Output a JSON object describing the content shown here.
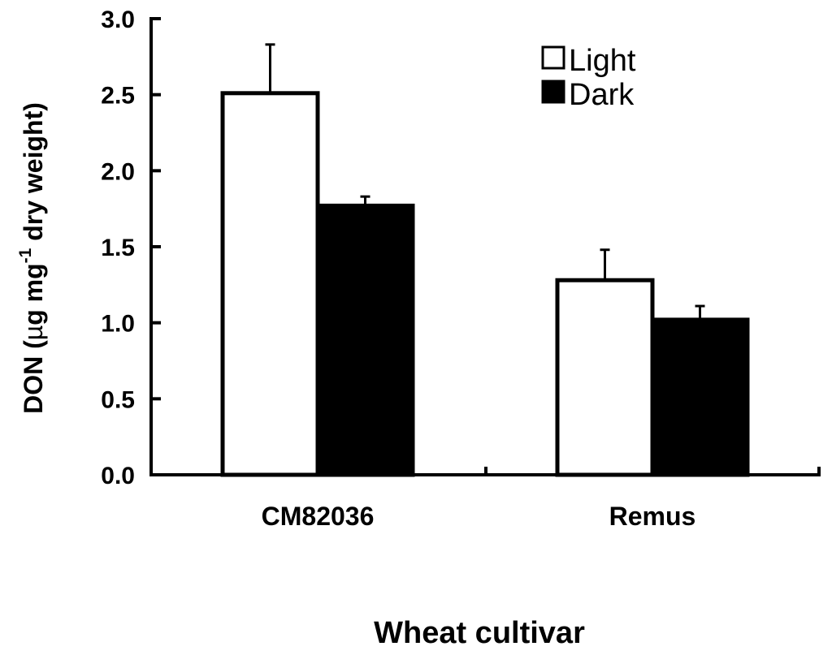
{
  "chart_data": {
    "type": "bar",
    "categories": [
      "CM82036",
      "Remus"
    ],
    "series": [
      {
        "name": "Light",
        "values": [
          2.51,
          1.28
        ],
        "errors": [
          0.32,
          0.2
        ],
        "color": "#ffffff"
      },
      {
        "name": "Dark",
        "values": [
          1.77,
          1.02
        ],
        "errors": [
          0.06,
          0.09
        ],
        "color": "#000000"
      }
    ],
    "xlabel": "Wheat cultivar",
    "ylabel": {
      "prefix": "DON (",
      "mu": "µ",
      "unit": "g mg",
      "superscript": "-1",
      "suffix": " dry weight)"
    },
    "ylim": [
      0,
      3.0
    ],
    "yticks": [
      0.0,
      0.5,
      1.0,
      1.5,
      2.0,
      2.5,
      3.0
    ],
    "ytick_labels": [
      "0.0",
      "0.5",
      "1.0",
      "1.5",
      "2.0",
      "2.5",
      "3.0"
    ],
    "grid": false,
    "legend_position": "top-right"
  }
}
